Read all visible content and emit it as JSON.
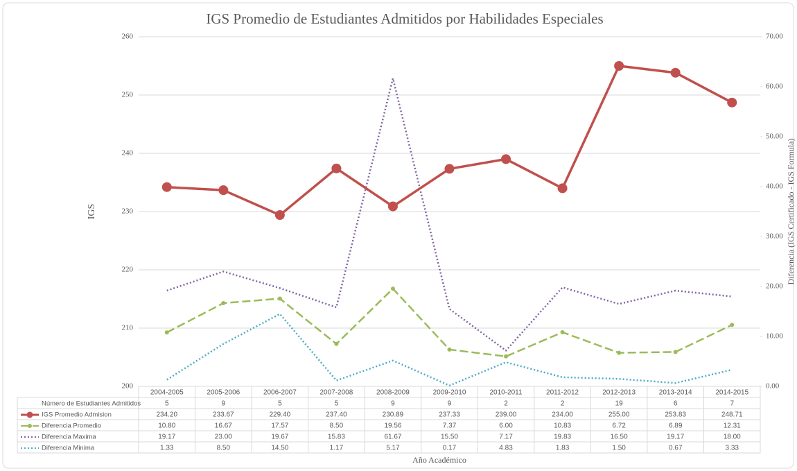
{
  "chart_data": {
    "type": "line",
    "title": "IGS Promedio de Estudiantes Admitidos por Habilidades Especiales",
    "y_label": "IGS",
    "y2_label": "Diferencia (IGS Certificado - IGS Formula)",
    "x_label": "Año Académico",
    "categories": [
      "2004-2005",
      "2005-2006",
      "2006-2007",
      "2007-2008",
      "2008-2009",
      "2009-2010",
      "2010-2011",
      "2011-2012",
      "2012-2013",
      "2013-2014",
      "2014-2015"
    ],
    "ylim": [
      200,
      260
    ],
    "yticks": [
      200,
      210,
      220,
      230,
      240,
      250,
      260
    ],
    "y2lim": [
      0,
      70
    ],
    "y2ticks": [
      {
        "value": 0,
        "label": "0.00"
      },
      {
        "value": 10,
        "label": "10.00"
      },
      {
        "value": 20,
        "label": "20.00"
      },
      {
        "value": 30,
        "label": "30.00"
      },
      {
        "value": 40,
        "label": "40.00"
      },
      {
        "value": 50,
        "label": "50.00"
      },
      {
        "value": 60,
        "label": "60.00"
      },
      {
        "value": 70,
        "label": "70.00"
      }
    ],
    "grid": true,
    "series": [
      {
        "name": "Número de Estudiantes Admitidos",
        "values": [
          5,
          9,
          5,
          5,
          9,
          9,
          2,
          2,
          19,
          6,
          7
        ]
      },
      {
        "name": "IGS Promedio Admision",
        "color": "#c0504d",
        "style": "solid",
        "values": [
          234.2,
          233.67,
          229.4,
          237.4,
          230.89,
          237.33,
          239,
          234,
          255,
          253.83,
          248.71
        ],
        "value_labels": [
          "234.20",
          "233.67",
          "229.40",
          "237.40",
          "230.89",
          "237.33",
          "239.00",
          "234.00",
          "255.00",
          "253.83",
          "248.71"
        ]
      },
      {
        "name": "Diferencia Promedio",
        "color": "#9bbb59",
        "style": "dashed",
        "axis": "y2",
        "values": [
          10.8,
          16.67,
          17.57,
          8.5,
          19.56,
          7.37,
          6,
          10.83,
          6.72,
          6.89,
          12.31
        ],
        "value_labels": [
          "10.80",
          "16.67",
          "17.57",
          "8.50",
          "19.56",
          "7.37",
          "6.00",
          "10.83",
          "6.72",
          "6.89",
          "12.31"
        ]
      },
      {
        "name": "Diferencia Maxima",
        "color": "#8064a2",
        "style": "dotted",
        "axis": "y2",
        "values": [
          19.17,
          23,
          19.67,
          15.83,
          61.67,
          15.5,
          7.17,
          19.83,
          16.5,
          19.17,
          18
        ],
        "value_labels": [
          "19.17",
          "23.00",
          "19.67",
          "15.83",
          "61.67",
          "15.50",
          "7.17",
          "19.83",
          "16.50",
          "19.17",
          "18.00"
        ]
      },
      {
        "name": "Diferencia Minima",
        "color": "#4bacc6",
        "style": "dotted",
        "axis": "y2",
        "values": [
          1.33,
          8.5,
          14.5,
          1.17,
          5.17,
          0.17,
          4.83,
          1.83,
          1.5,
          0.67,
          3.33
        ],
        "value_labels": [
          "1.33",
          "8.50",
          "14.50",
          "1.17",
          "5.17",
          "0.17",
          "4.83",
          "1.83",
          "1.50",
          "0.67",
          "3.33"
        ]
      }
    ]
  }
}
